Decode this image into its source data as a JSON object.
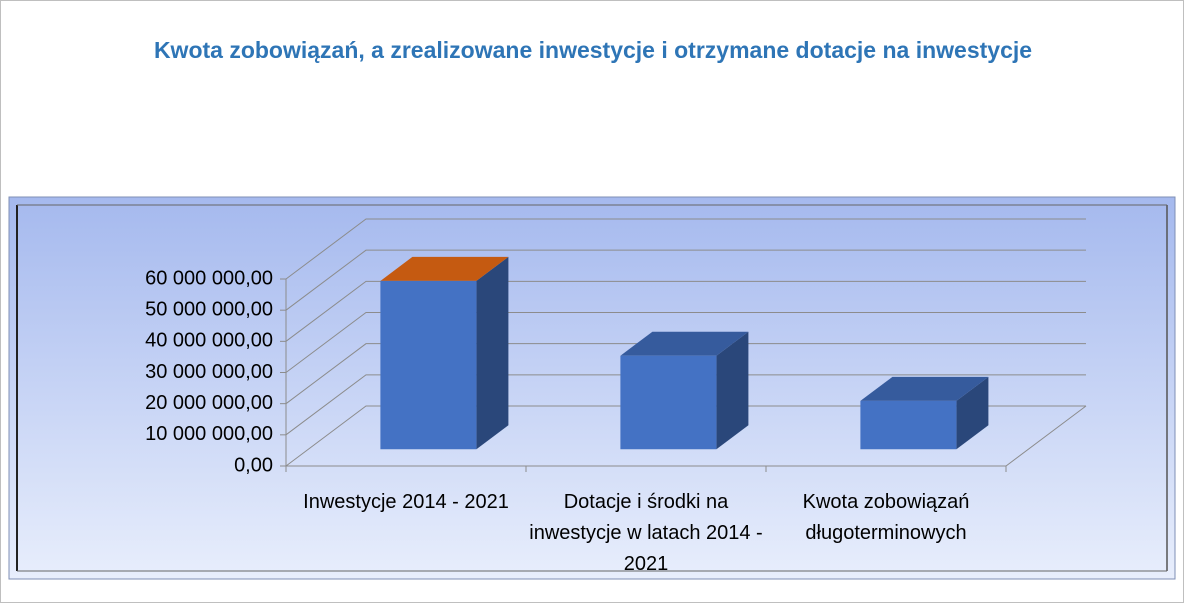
{
  "chart_data": {
    "type": "bar3d",
    "title": "Kwota zobowiązań, a zrealizowane inwestycje i otrzymane dotacje na inwestycje",
    "categories": [
      "Inwestycje 2014 - 2021",
      "Dotacje i środki na inwestycje w latach 2014 - 2021",
      "Kwota zobowiązań długoterminowych"
    ],
    "values": [
      54000000,
      30000000,
      15500000
    ],
    "color": "#4472c4",
    "highlight_top_color": "#c55a11",
    "ylim": [
      0,
      60000000
    ],
    "yticks": [
      {
        "value": 0,
        "label": "0,00"
      },
      {
        "value": 10000000,
        "label": "10 000 000,00"
      },
      {
        "value": 20000000,
        "label": "20 000 000,00"
      },
      {
        "value": 30000000,
        "label": "30 000 000,00"
      },
      {
        "value": 40000000,
        "label": "40 000 000,00"
      },
      {
        "value": 50000000,
        "label": "50 000 000,00"
      },
      {
        "value": 60000000,
        "label": "60 000 000,00"
      }
    ],
    "grid": true
  }
}
